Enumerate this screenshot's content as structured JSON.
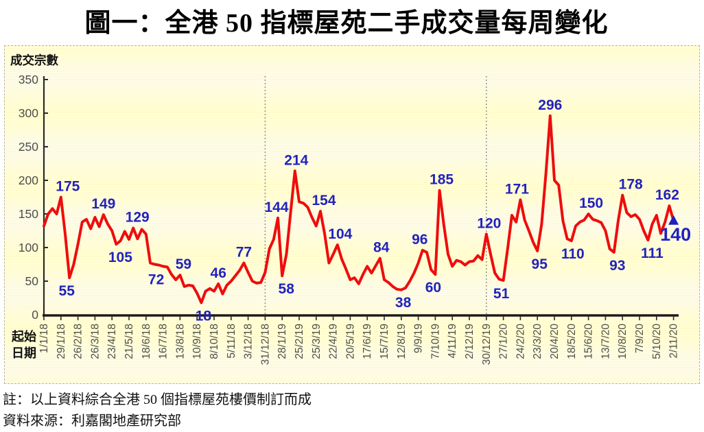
{
  "title": "圖一：全港 50 指標屋苑二手成交量每周變化",
  "notes": [
    "註：以上資料綜合全港 50 個指標屋苑樓價制訂而成",
    "資料來源：利嘉閣地產研究部"
  ],
  "chart_data": {
    "type": "line",
    "title": "全港 50 指標屋苑二手成交量每周變化",
    "y_axis_title": "成交宗數",
    "x_axis_title_lines": [
      "起始",
      "日期"
    ],
    "ylim": [
      0,
      350
    ],
    "y_ticks": [
      0,
      50,
      100,
      150,
      200,
      250,
      300,
      350
    ],
    "x_tick_step_weeks": 4,
    "x_tick_labels": [
      "1/1/18",
      "29/1/18",
      "26/2/18",
      "26/3/18",
      "23/4/18",
      "21/5/18",
      "18/6/18",
      "16/7/18",
      "13/8/18",
      "10/9/18",
      "8/10/18",
      "5/11/18",
      "3/12/18",
      "31/12/18",
      "28/1/19",
      "25/2/19",
      "25/3/19",
      "22/4/19",
      "20/5/19",
      "17/6/19",
      "15/7/19",
      "12/8/19",
      "9/9/19",
      "7/10/19",
      "4/11/19",
      "2/12/19",
      "30/12/19",
      "27/1/20",
      "24/2/20",
      "23/3/20",
      "20/4/20",
      "18/5/20",
      "15/6/20",
      "13/7/20",
      "10/8/20",
      "7/9/20",
      "5/10/20",
      "2/11/20"
    ],
    "year_divider_weeks": [
      52,
      104
    ],
    "series": [
      {
        "name": "每周二手成交量",
        "values": [
          132,
          150,
          158,
          150,
          175,
          120,
          55,
          75,
          105,
          138,
          142,
          128,
          145,
          131,
          149,
          135,
          125,
          105,
          110,
          124,
          112,
          129,
          113,
          127,
          120,
          77,
          75,
          74,
          72,
          71,
          60,
          52,
          59,
          42,
          44,
          43,
          32,
          18,
          35,
          39,
          35,
          46,
          31,
          44,
          50,
          58,
          66,
          77,
          63,
          50,
          47,
          48,
          63,
          98,
          112,
          144,
          58,
          90,
          153,
          214,
          168,
          166,
          160,
          145,
          132,
          154,
          120,
          77,
          90,
          104,
          83,
          68,
          52,
          55,
          46,
          60,
          72,
          62,
          73,
          84,
          52,
          48,
          42,
          38,
          37,
          40,
          50,
          62,
          77,
          96,
          93,
          67,
          60,
          185,
          134,
          90,
          72,
          81,
          79,
          74,
          79,
          80,
          88,
          82,
          120,
          90,
          62,
          53,
          51,
          98,
          148,
          138,
          171,
          141,
          125,
          108,
          95,
          135,
          210,
          296,
          200,
          193,
          140,
          113,
          110,
          132,
          138,
          141,
          150,
          142,
          140,
          137,
          125,
          98,
          93,
          140,
          178,
          152,
          146,
          149,
          142,
          125,
          111,
          135,
          148,
          121,
          138,
          162,
          140
        ]
      }
    ],
    "labeled_points": [
      {
        "week": 4,
        "value": 175,
        "pos": "above",
        "dx": 10
      },
      {
        "week": 6,
        "value": 55,
        "pos": "below",
        "dx": -4
      },
      {
        "week": 14,
        "value": 149,
        "pos": "above",
        "dx": 0
      },
      {
        "week": 17,
        "value": 105,
        "pos": "below",
        "dx": 6
      },
      {
        "week": 21,
        "value": 129,
        "pos": "above",
        "dx": 6
      },
      {
        "week": 28,
        "value": 72,
        "pos": "below",
        "dx": -10
      },
      {
        "week": 32,
        "value": 59,
        "pos": "above",
        "dx": 5
      },
      {
        "week": 37,
        "value": 18,
        "pos": "below",
        "dx": 3
      },
      {
        "week": 41,
        "value": 46,
        "pos": "above",
        "dx": 0
      },
      {
        "week": 47,
        "value": 77,
        "pos": "above",
        "dx": 0
      },
      {
        "week": 55,
        "value": 144,
        "pos": "above",
        "dx": -2
      },
      {
        "week": 56,
        "value": 58,
        "pos": "below",
        "dx": 6
      },
      {
        "week": 59,
        "value": 214,
        "pos": "above",
        "dx": 2
      },
      {
        "week": 65,
        "value": 154,
        "pos": "above",
        "dx": 5
      },
      {
        "week": 69,
        "value": 104,
        "pos": "above",
        "dx": 4
      },
      {
        "week": 79,
        "value": 84,
        "pos": "above",
        "dx": 2
      },
      {
        "week": 83,
        "value": 38,
        "pos": "below",
        "dx": 9
      },
      {
        "week": 89,
        "value": 96,
        "pos": "above",
        "dx": -4
      },
      {
        "week": 92,
        "value": 60,
        "pos": "below",
        "dx": -3
      },
      {
        "week": 93,
        "value": 185,
        "pos": "above",
        "dx": 3
      },
      {
        "week": 104,
        "value": 120,
        "pos": "above",
        "dx": 4
      },
      {
        "week": 108,
        "value": 51,
        "pos": "below",
        "dx": -3
      },
      {
        "week": 112,
        "value": 171,
        "pos": "above",
        "dx": -5
      },
      {
        "week": 116,
        "value": 95,
        "pos": "below",
        "dx": 3
      },
      {
        "week": 119,
        "value": 296,
        "pos": "above",
        "dx": 0
      },
      {
        "week": 124,
        "value": 110,
        "pos": "below",
        "dx": 2
      },
      {
        "week": 128,
        "value": 150,
        "pos": "above",
        "dx": 4
      },
      {
        "week": 134,
        "value": 93,
        "pos": "below",
        "dx": 5
      },
      {
        "week": 136,
        "value": 178,
        "pos": "above",
        "dx": 12
      },
      {
        "week": 142,
        "value": 111,
        "pos": "below",
        "dx": 6
      },
      {
        "week": 147,
        "value": 162,
        "pos": "above",
        "dx": -3
      },
      {
        "week": 148,
        "value": 140,
        "pos": "final",
        "dx": 3
      }
    ],
    "last_point_marker": {
      "week": 148,
      "value": 140,
      "shape": "triangle-up"
    },
    "legend": "none",
    "grid": "horizontal-pinstripes",
    "colors": {
      "line": "#ee0d0d",
      "data_label": "#2222bd",
      "marker": "#1f1fbf",
      "axis": "#2a2a2a",
      "tick_text": "#4d4d4d",
      "axis_title_text": "#111111",
      "plot_bg": "#fffbce",
      "plot_bg_stripe": "#fffef2",
      "year_divider": "#8a8a8a"
    }
  }
}
